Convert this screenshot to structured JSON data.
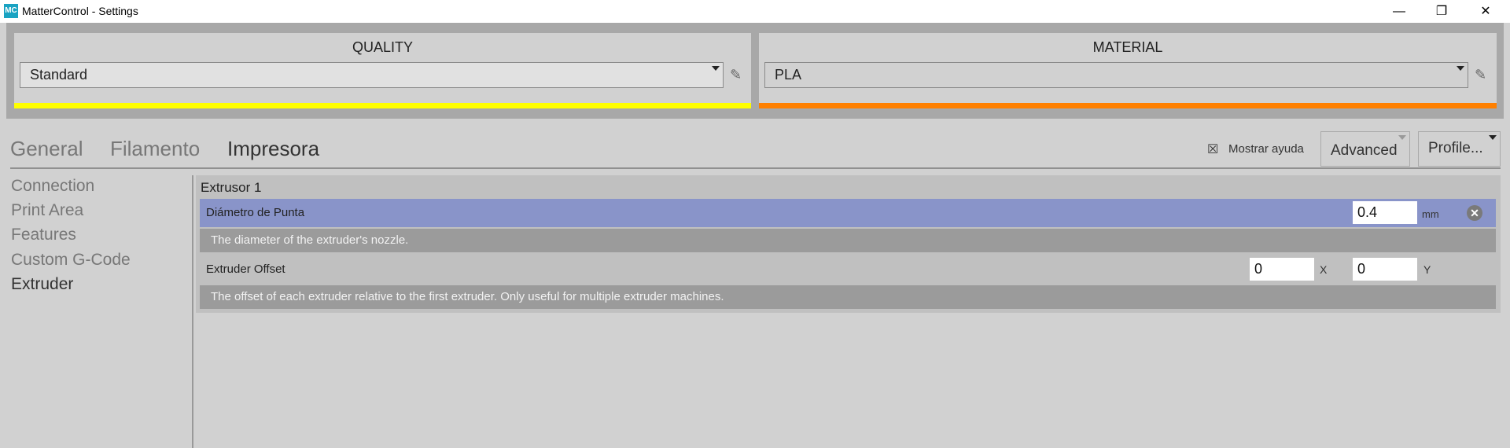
{
  "window": {
    "title": "MatterControl - Settings",
    "icon_text": "MC",
    "minimize": "—",
    "maximize": "❐",
    "close": "✕"
  },
  "quality": {
    "title": "QUALITY",
    "value": "Standard",
    "color": "#ffff00"
  },
  "material": {
    "title": "MATERIAL",
    "value": "PLA",
    "color": "#ff8000"
  },
  "tabs": [
    {
      "label": "General"
    },
    {
      "label": "Filamento"
    },
    {
      "label": "Impresora",
      "active": true
    }
  ],
  "toolbar": {
    "help_checkbox": "☒",
    "help_label": "Mostrar ayuda",
    "advanced": "Advanced",
    "profile": "Profile..."
  },
  "sidebar": {
    "items": [
      {
        "label": "Connection"
      },
      {
        "label": "Print Area"
      },
      {
        "label": "Features"
      },
      {
        "label": "Custom G-Code"
      },
      {
        "label": "Extruder",
        "active": true
      }
    ]
  },
  "group": {
    "title": "Extrusor 1",
    "nozzle": {
      "label": "Diámetro de Punta",
      "value": "0.4",
      "unit": "mm",
      "description": "The diameter of the extruder's nozzle.",
      "highlight": "#8994c9"
    },
    "offset": {
      "label": "Extruder Offset",
      "x": "0",
      "x_unit": "X",
      "y": "0",
      "y_unit": "Y",
      "description": "The offset of each extruder relative to the first extruder. Only useful for multiple extruder machines."
    }
  }
}
